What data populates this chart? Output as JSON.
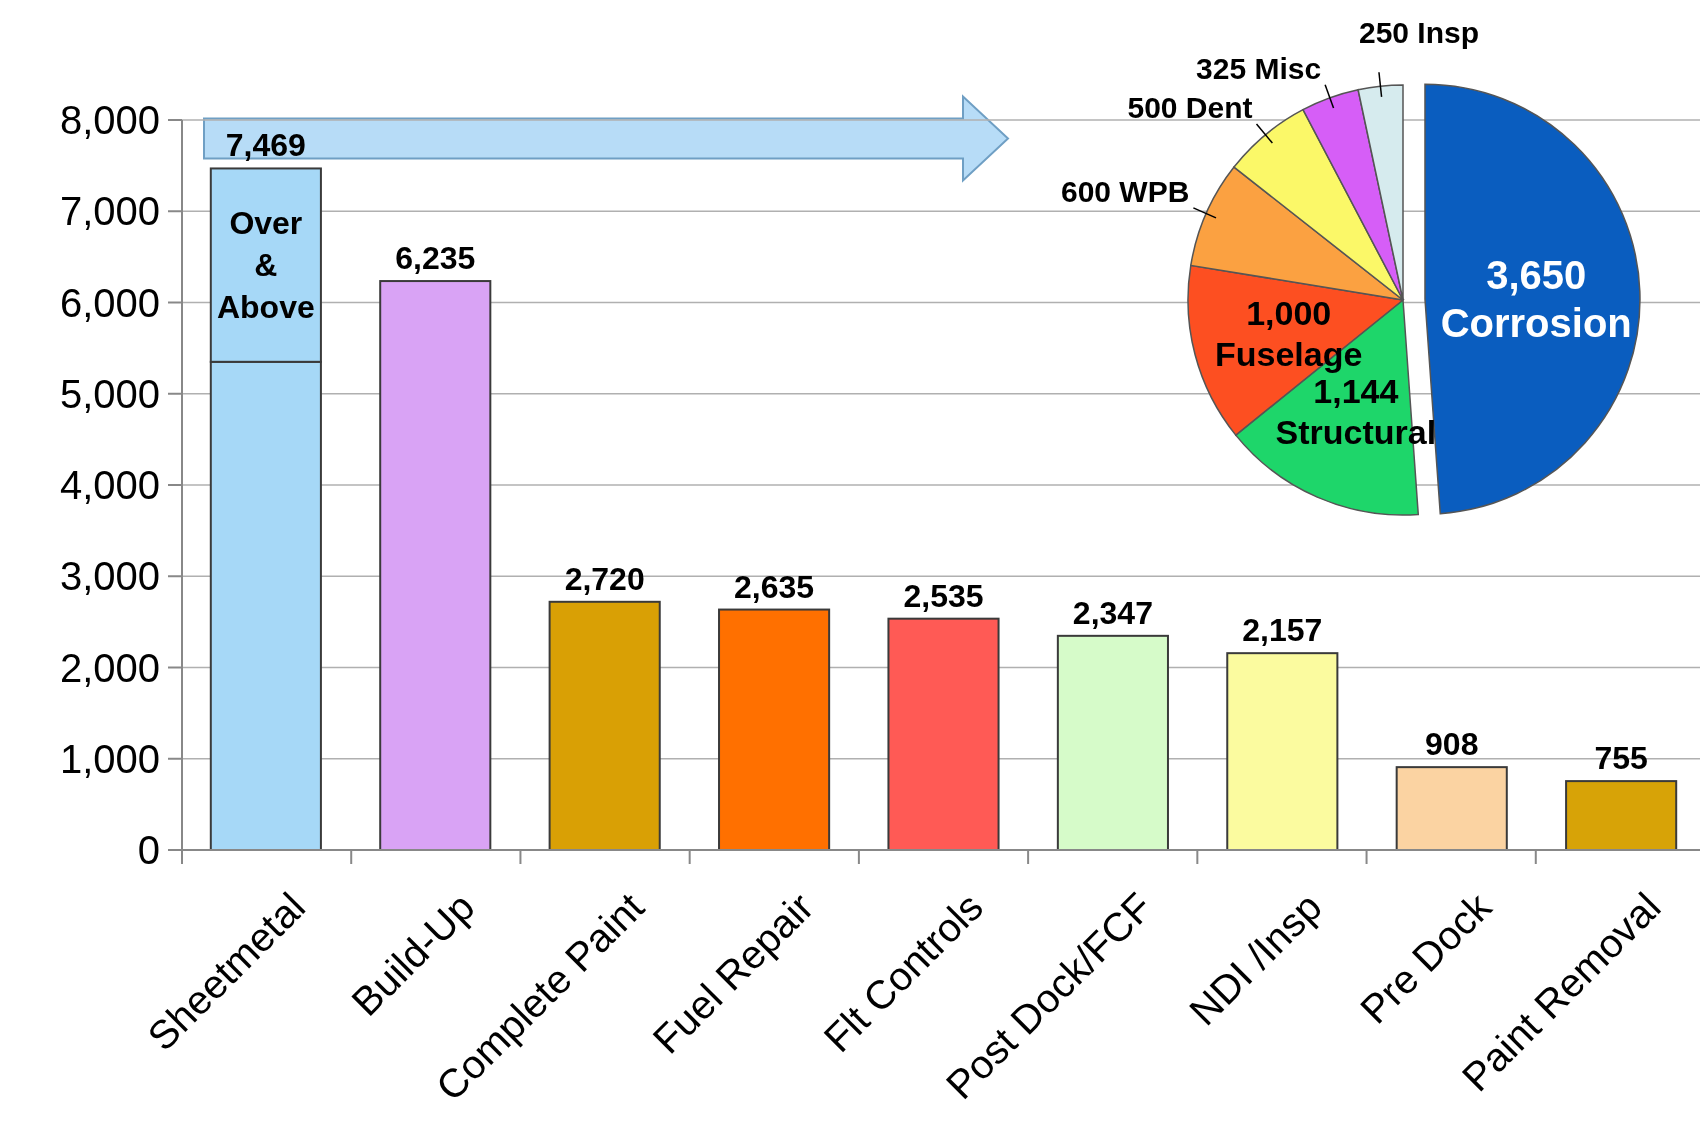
{
  "chart_data": [
    {
      "type": "bar",
      "stacked": true,
      "categories": [
        "Sheetmetal",
        "Build-Up",
        "Complete Paint",
        "Fuel Repair",
        "Flt Controls",
        "Post Dock/FCF",
        "NDI /Insp",
        "Pre Dock",
        "Paint Removal"
      ],
      "series": [
        {
          "values": [
            5350,
            6235,
            2720,
            2635,
            2535,
            2347,
            2157,
            908,
            755
          ],
          "colors": [
            "#a6d8f7",
            "#d9a3f5",
            "#d9a005",
            "#ff7000",
            "#ff5a55",
            "#d6fbc9",
            "#fbfb9f",
            "#fbd3a2",
            "#d7a307"
          ]
        },
        {
          "name": "Over & Above",
          "values": [
            2119,
            null,
            null,
            null,
            null,
            null,
            null,
            null,
            null
          ],
          "color": "#a6d8f7"
        }
      ],
      "totals": [
        "7,469",
        "6,235",
        "2,720",
        "2,635",
        "2,535",
        "2,347",
        "2,157",
        "908",
        "755"
      ],
      "ylim": [
        0,
        8000
      ],
      "yticks": [
        {
          "value": 0,
          "label": "0"
        },
        {
          "value": 1000,
          "label": "1,000"
        },
        {
          "value": 2000,
          "label": "2,000"
        },
        {
          "value": 3000,
          "label": "3,000"
        },
        {
          "value": 4000,
          "label": "4,000"
        },
        {
          "value": 5000,
          "label": "5,000"
        },
        {
          "value": 6000,
          "label": "6,000"
        },
        {
          "value": 7000,
          "label": "7,000"
        },
        {
          "value": 8000,
          "label": "8,000"
        }
      ],
      "grid": "y"
    },
    {
      "type": "pie",
      "categories": [
        "Corrosion",
        "Structural",
        "Fuselage",
        "WPB",
        "Dent",
        "Misc",
        "Insp"
      ],
      "values": [
        3650,
        1144,
        1000,
        600,
        500,
        325,
        250
      ],
      "value_labels": [
        "3,650",
        "1,144",
        "1,000",
        "600",
        "500",
        "325",
        "250"
      ],
      "colors": [
        "#0a5dbf",
        "#1ed66a",
        "#fd4f21",
        "#fba141",
        "#fbf868",
        "#d65ef7",
        "#d6ebee"
      ]
    }
  ]
}
